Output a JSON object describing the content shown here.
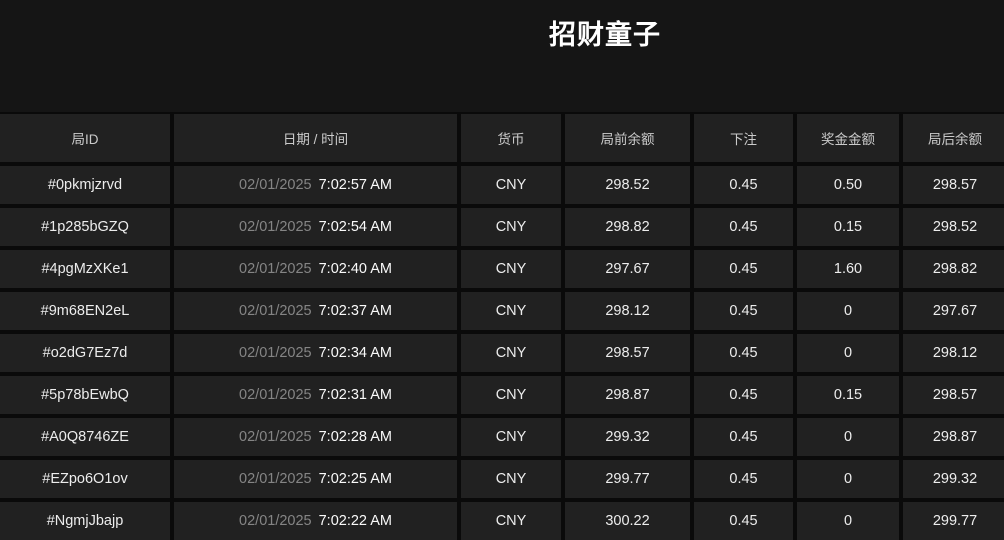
{
  "page": {
    "title": "招财童子"
  },
  "colors": {
    "page-bg": "#151515",
    "cell-bg": "#212121",
    "gap": "#0a0a0a",
    "title-text": "#ffffff",
    "header-text": "#cbcbcb",
    "body-text": "#ededed",
    "date-text": "#858585",
    "time-text": "#fafafa"
  },
  "table": {
    "columns": [
      {
        "key": "round_id",
        "label": "局ID"
      },
      {
        "key": "datetime",
        "label": "日期 / 时间"
      },
      {
        "key": "currency",
        "label": "货币"
      },
      {
        "key": "balance_before",
        "label": "局前余额"
      },
      {
        "key": "bet",
        "label": "下注"
      },
      {
        "key": "prize",
        "label": "奖金金额"
      },
      {
        "key": "balance_after",
        "label": "局后余额"
      }
    ],
    "rows": [
      {
        "round_id": "#0pkmjzrvd",
        "date": "02/01/2025",
        "time": "7:02:57 AM",
        "currency": "CNY",
        "balance_before": "298.52",
        "bet": "0.45",
        "prize": "0.50",
        "balance_after": "298.57"
      },
      {
        "round_id": "#1p285bGZQ",
        "date": "02/01/2025",
        "time": "7:02:54 AM",
        "currency": "CNY",
        "balance_before": "298.82",
        "bet": "0.45",
        "prize": "0.15",
        "balance_after": "298.52"
      },
      {
        "round_id": "#4pgMzXKe1",
        "date": "02/01/2025",
        "time": "7:02:40 AM",
        "currency": "CNY",
        "balance_before": "297.67",
        "bet": "0.45",
        "prize": "1.60",
        "balance_after": "298.82"
      },
      {
        "round_id": "#9m68EN2eL",
        "date": "02/01/2025",
        "time": "7:02:37 AM",
        "currency": "CNY",
        "balance_before": "298.12",
        "bet": "0.45",
        "prize": "0",
        "balance_after": "297.67"
      },
      {
        "round_id": "#o2dG7Ez7d",
        "date": "02/01/2025",
        "time": "7:02:34 AM",
        "currency": "CNY",
        "balance_before": "298.57",
        "bet": "0.45",
        "prize": "0",
        "balance_after": "298.12"
      },
      {
        "round_id": "#5p78bEwbQ",
        "date": "02/01/2025",
        "time": "7:02:31 AM",
        "currency": "CNY",
        "balance_before": "298.87",
        "bet": "0.45",
        "prize": "0.15",
        "balance_after": "298.57"
      },
      {
        "round_id": "#A0Q8746ZE",
        "date": "02/01/2025",
        "time": "7:02:28 AM",
        "currency": "CNY",
        "balance_before": "299.32",
        "bet": "0.45",
        "prize": "0",
        "balance_after": "298.87"
      },
      {
        "round_id": "#EZpo6O1ov",
        "date": "02/01/2025",
        "time": "7:02:25 AM",
        "currency": "CNY",
        "balance_before": "299.77",
        "bet": "0.45",
        "prize": "0",
        "balance_after": "299.32"
      },
      {
        "round_id": "#NgmjJbajp",
        "date": "02/01/2025",
        "time": "7:02:22 AM",
        "currency": "CNY",
        "balance_before": "300.22",
        "bet": "0.45",
        "prize": "0",
        "balance_after": "299.77"
      }
    ]
  }
}
